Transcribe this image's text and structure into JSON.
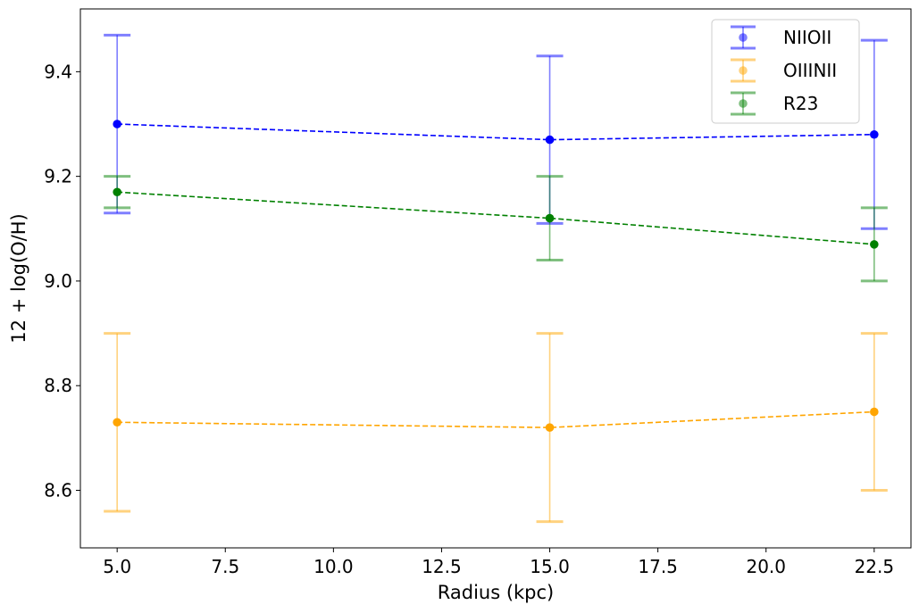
{
  "chart_data": {
    "type": "line",
    "title": "",
    "xlabel": "Radius (kpc)",
    "ylabel": "12 + log(O/H)",
    "xlim": [
      4.15,
      23.35
    ],
    "ylim": [
      8.49,
      9.52
    ],
    "xticks": [
      5.0,
      7.5,
      10.0,
      12.5,
      15.0,
      17.5,
      20.0,
      22.5
    ],
    "xtick_labels": [
      "5.0",
      "7.5",
      "10.0",
      "12.5",
      "15.0",
      "17.5",
      "20.0",
      "22.5"
    ],
    "yticks": [
      8.6,
      8.8,
      9.0,
      9.2,
      9.4
    ],
    "ytick_labels": [
      "8.6",
      "8.8",
      "9.0",
      "9.2",
      "9.4"
    ],
    "grid": false,
    "legend_position": "top-right",
    "x": [
      5.0,
      15.0,
      22.5
    ],
    "series": [
      {
        "name": "NIIOII",
        "color": "#0000ff",
        "values": [
          9.3,
          9.27,
          9.28
        ],
        "err_low": [
          9.13,
          9.11,
          9.1
        ],
        "err_high": [
          9.47,
          9.43,
          9.46
        ]
      },
      {
        "name": "OIIINII",
        "color": "#ffa500",
        "values": [
          8.73,
          8.72,
          8.75
        ],
        "err_low": [
          8.56,
          8.54,
          8.6
        ],
        "err_high": [
          8.9,
          8.9,
          8.9
        ]
      },
      {
        "name": "R23",
        "color": "#008000",
        "values": [
          9.17,
          9.12,
          9.07
        ],
        "err_low": [
          9.14,
          9.04,
          9.0
        ],
        "err_high": [
          9.2,
          9.2,
          9.14
        ]
      }
    ]
  }
}
